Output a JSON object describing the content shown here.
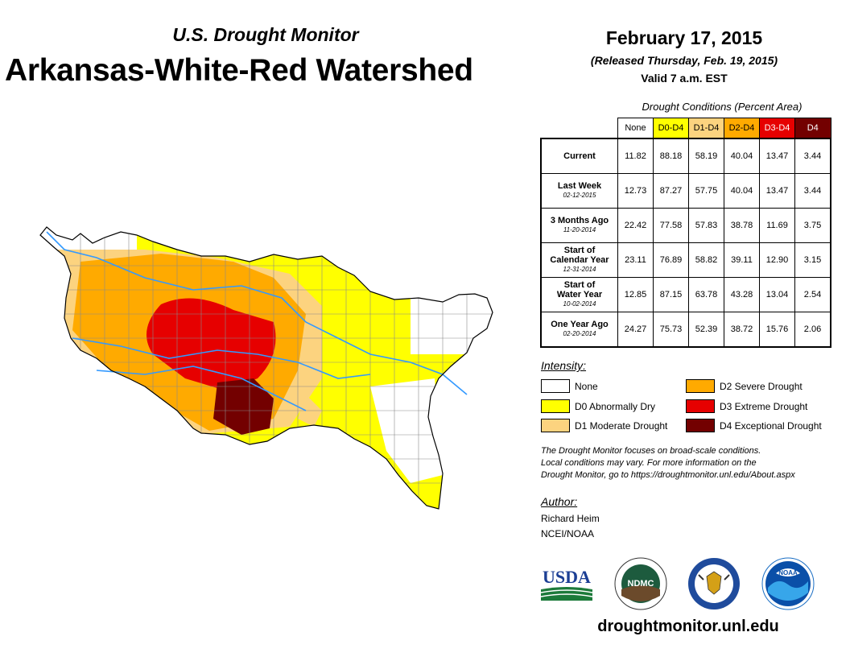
{
  "header": {
    "subtitle": "U.S. Drought Monitor",
    "title": "Arkansas-White-Red Watershed",
    "date": "February 17, 2015",
    "released": "(Released Thursday, Feb. 19, 2015)",
    "valid": "Valid 7 a.m. EST"
  },
  "table": {
    "title": "Drought Conditions (Percent Area)",
    "columns": [
      {
        "label": "None",
        "color": "#ffffff",
        "text": "#000000"
      },
      {
        "label": "D0-D4",
        "color": "#ffff00",
        "text": "#000000"
      },
      {
        "label": "D1-D4",
        "color": "#fcd37f",
        "text": "#000000"
      },
      {
        "label": "D2-D4",
        "color": "#ffaa00",
        "text": "#000000"
      },
      {
        "label": "D3-D4",
        "color": "#e60000",
        "text": "#ffffff"
      },
      {
        "label": "D4",
        "color": "#730000",
        "text": "#ffffff"
      }
    ],
    "rows": [
      {
        "label_lines": [
          "Current"
        ],
        "sub": "",
        "values": [
          "11.82",
          "88.18",
          "58.19",
          "40.04",
          "13.47",
          "3.44"
        ]
      },
      {
        "label_lines": [
          "Last Week"
        ],
        "sub": "02-12-2015",
        "values": [
          "12.73",
          "87.27",
          "57.75",
          "40.04",
          "13.47",
          "3.44"
        ]
      },
      {
        "label_lines": [
          "3 Months Ago"
        ],
        "sub": "11-20-2014",
        "values": [
          "22.42",
          "77.58",
          "57.83",
          "38.78",
          "11.69",
          "3.75"
        ]
      },
      {
        "label_lines": [
          "Start of",
          "Calendar Year"
        ],
        "sub": "12-31-2014",
        "values": [
          "23.11",
          "76.89",
          "58.82",
          "39.11",
          "12.90",
          "3.15"
        ]
      },
      {
        "label_lines": [
          "Start of",
          "Water Year"
        ],
        "sub": "10-02-2014",
        "values": [
          "12.85",
          "87.15",
          "63.78",
          "43.28",
          "13.04",
          "2.54"
        ]
      },
      {
        "label_lines": [
          "One Year Ago"
        ],
        "sub": "02-20-2014",
        "values": [
          "24.27",
          "75.73",
          "52.39",
          "38.72",
          "15.76",
          "2.06"
        ]
      }
    ]
  },
  "legend": {
    "title": "Intensity:",
    "items": [
      {
        "label": "None",
        "color": "#ffffff"
      },
      {
        "label": "D0 Abnormally Dry",
        "color": "#ffff00"
      },
      {
        "label": "D1 Moderate Drought",
        "color": "#fcd37f"
      },
      {
        "label": "D2 Severe Drought",
        "color": "#ffaa00"
      },
      {
        "label": "D3 Extreme Drought",
        "color": "#e60000"
      },
      {
        "label": "D4 Exceptional Drought",
        "color": "#730000"
      }
    ]
  },
  "note": [
    "The Drought Monitor focuses on broad-scale conditions.",
    "Local conditions may vary. For more information on the",
    "Drought Monitor, go to https://droughtmonitor.unl.edu/About.aspx"
  ],
  "author": {
    "title": "Author:",
    "name": "Richard Heim",
    "org": "NCEI/NOAA"
  },
  "logos": {
    "usda": "USDA",
    "ndmc": "NDMC",
    "noaa": "NOAA"
  },
  "site": "droughtmonitor.unl.edu"
}
